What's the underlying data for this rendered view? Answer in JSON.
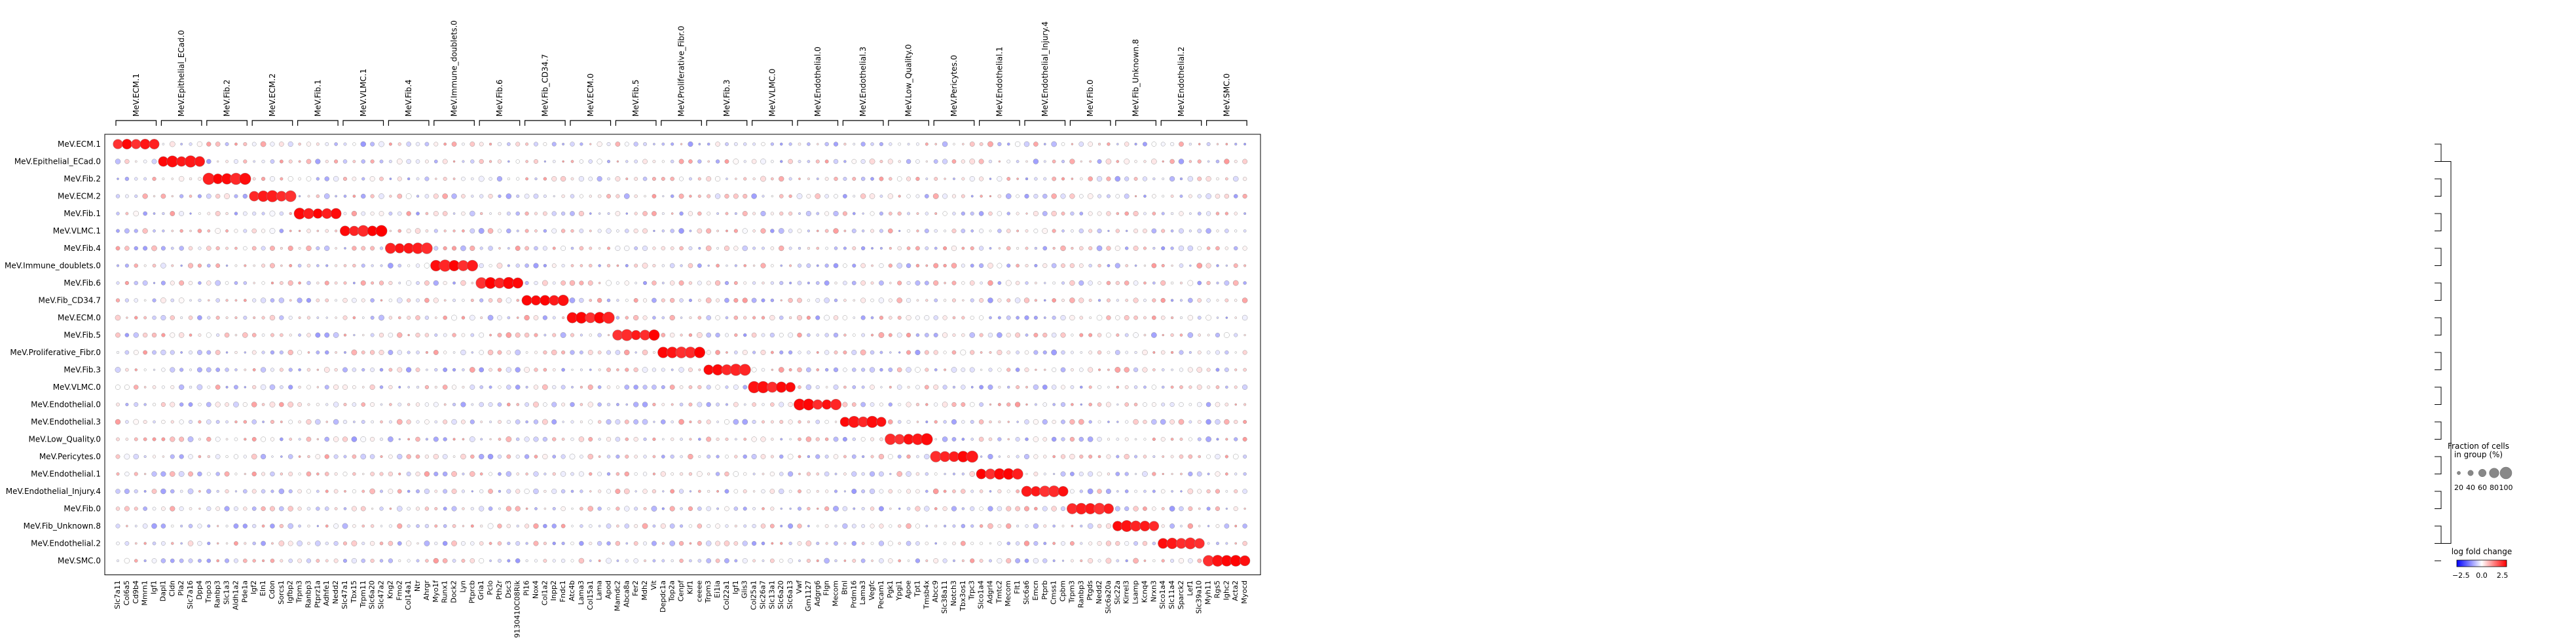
{
  "chart_data": {
    "type": "dotplot",
    "clusters": [
      "MeV.ECM.1",
      "MeV.Epithelial_ECad.0",
      "MeV.Fib.2",
      "MeV.ECM.2",
      "MeV.Fib.1",
      "MeV.VLMC.1",
      "MeV.Fib.4",
      "MeV.Immune_doublets.0",
      "MeV.Fib.6",
      "MeV.Fib_CD34.7",
      "MeV.ECM.0",
      "MeV.Fib.5",
      "MeV.Proliferative_Fibr.0",
      "MeV.Fib.3",
      "MeV.VLMC.0",
      "MeV.Endothelial.0",
      "MeV.Endothelial.3",
      "MeV.Low_Quality.0",
      "MeV.Pericytes.0",
      "MeV.Endothelial.1",
      "MeV.Endothelial_Injury.4",
      "MeV.Fib.0",
      "MeV.Fib_Unknown.8",
      "MeV.Endothelial.2",
      "MeV.SMC.0"
    ],
    "genes": [
      "Slc7a11",
      "Col6a5",
      "Cd9b4",
      "Mmrn1",
      "Igf1",
      "Dapl1",
      "Cldn",
      "Pla2",
      "Slc7a16",
      "Dpp4",
      "Tnpo3",
      "Ranbp3",
      "Slc1a3",
      "Aldh1a2",
      "Pde1a",
      "Igf2",
      "Eln1",
      "Cdon",
      "Sorcs1",
      "Igfbp2",
      "Trpm3",
      "Ranbp3",
      "Ptprz1a",
      "Adhfe1",
      "Nedd2",
      "Slc47a1",
      "Tbx15",
      "Trpm11",
      "Slc6a20",
      "Slc47a2",
      "Kng2",
      "Fmo2",
      "Col14a1",
      "Ntr",
      "Ahrgr",
      "Myo1f",
      "Runx1",
      "Dock2",
      "Lyn",
      "Ptprcb",
      "Gria1",
      "Pclo",
      "Pth2r",
      "Dsc3",
      "9130410C08Rik",
      "Pi16",
      "Nox4",
      "Col1a2",
      "Inpp2",
      "Fndc1",
      "Atc4b",
      "Lama3",
      "Col15a1",
      "Lama",
      "Apod",
      "Mamdc2",
      "Abca8a",
      "Fer2",
      "Mdh2",
      "Vit",
      "Depdc1a",
      "Top2a",
      "Cenpf",
      "Kif1",
      "ceeee",
      "Trpm3",
      "Ei1ia",
      "Col22a1",
      "Igf1",
      "Glis3",
      "Col25a1",
      "Slc26a7",
      "Slc13a1",
      "Slc6a20",
      "Slc6a13",
      "Vwf",
      "Gm1127",
      "Adgrg6",
      "Flgn",
      "Mecom",
      "Btnl",
      "Prdm16",
      "Lama3",
      "Vegfc",
      "Pecam1",
      "Pgk1",
      "Ypgi1",
      "Apoe",
      "Tpt1",
      "Tmsb4x",
      "Abcc9",
      "Slc38a11",
      "Notch3",
      "Tbx3os1",
      "Trpc3",
      "Slco1a4",
      "Adgrl4",
      "Tmtc2",
      "Mecom",
      "Flt1",
      "Slc6a6",
      "Emcn",
      "Ptprb",
      "Cmss1",
      "Cpbm",
      "Trpm3",
      "Ranbp3",
      "Ptgds",
      "Nedd2",
      "Slc6a20a",
      "Slc22a",
      "Kirrel3",
      "Lsamp",
      "Kcnq4",
      "Nrxn3",
      "Slco1a4",
      "Slc11a4",
      "Sparck2",
      "Lef1",
      "Slc39a10",
      "Myh11",
      "Rgs5",
      "Ighc2",
      "Acta2",
      "Myocd"
    ],
    "gene_groups": [
      {
        "label": "MeV.ECM.1",
        "count": 5
      },
      {
        "label": "MeV.Epithelial_ECad.0",
        "count": 5
      },
      {
        "label": "MeV.Fib.2",
        "count": 5
      },
      {
        "label": "MeV.ECM.2",
        "count": 5
      },
      {
        "label": "MeV.Fib.1",
        "count": 5
      },
      {
        "label": "MeV.VLMC.1",
        "count": 5
      },
      {
        "label": "MeV.Fib.4",
        "count": 5
      },
      {
        "label": "MeV.Immune_doublets.0",
        "count": 5
      },
      {
        "label": "MeV.Fib.6",
        "count": 5
      },
      {
        "label": "MeV.Fib_CD34.7",
        "count": 5
      },
      {
        "label": "MeV.ECM.0",
        "count": 5
      },
      {
        "label": "MeV.Fib.5",
        "count": 5
      },
      {
        "label": "MeV.Proliferative_Fibr.0",
        "count": 5
      },
      {
        "label": "MeV.Fib.3",
        "count": 5
      },
      {
        "label": "MeV.VLMC.0",
        "count": 5
      },
      {
        "label": "MeV.Endothelial.0",
        "count": 5
      },
      {
        "label": "MeV.Endothelial.3",
        "count": 5
      },
      {
        "label": "MeV.Low_Quality.0",
        "count": 5
      },
      {
        "label": "MeV.Pericytes.0",
        "count": 5
      },
      {
        "label": "MeV.Endothelial.1",
        "count": 5
      },
      {
        "label": "MeV.Endothelial_Injury.4",
        "count": 5
      },
      {
        "label": "MeV.Fib.0",
        "count": 5
      },
      {
        "label": "MeV.Fib_Unknown.8",
        "count": 5
      },
      {
        "label": "MeV.Endothelial.2",
        "count": 5
      },
      {
        "label": "MeV.SMC.0",
        "count": 5
      }
    ],
    "size_legend": {
      "title": "Fraction of cells\nin group (%)",
      "values": [
        20,
        40,
        60,
        80,
        100
      ],
      "labels": [
        "20",
        "40",
        "60",
        "80",
        "100"
      ]
    },
    "color_legend": {
      "title": "log fold change",
      "ticks": [
        -2.5,
        0.0,
        2.5
      ],
      "tick_labels": [
        "−2.5",
        "0.0",
        "2.5"
      ],
      "colormap": "bwr",
      "low_color": "#0000ff",
      "mid_color": "#ffffff",
      "high_color": "#ff0000"
    },
    "dendrogram": "right",
    "values_note": ""
  }
}
